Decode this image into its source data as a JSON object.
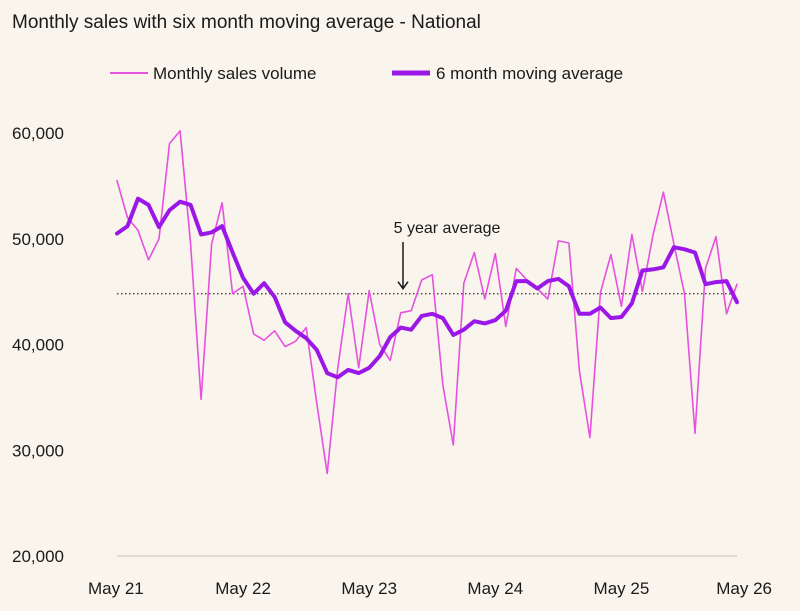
{
  "chart_data": {
    "type": "line",
    "title": "Monthly sales with six month moving average - National",
    "xlabel": "",
    "ylabel": "",
    "ylim": [
      20000,
      60000
    ],
    "yticks": [
      20000,
      30000,
      40000,
      50000,
      60000
    ],
    "ytick_labels": [
      "20,000",
      "30,000",
      "40,000",
      "50,000",
      "60,000"
    ],
    "xtick_labels": [
      "May 21",
      "May 22",
      "May 23",
      "May 24",
      "May 25",
      "May 26"
    ],
    "x_start": "May 21",
    "x_end": "May 26",
    "grid": false,
    "legend_position": "top",
    "reference_line": {
      "label": "5 year average",
      "value": 44800
    },
    "series": [
      {
        "name": "Monthly sales volume",
        "color": "#e552e0",
        "values": [
          55500,
          52000,
          50800,
          48000,
          50000,
          59000,
          60200,
          49500,
          34800,
          49500,
          53400,
          44800,
          45500,
          41000,
          40400,
          41300,
          39800,
          40300,
          41600,
          34500,
          27800,
          37700,
          44800,
          37800,
          45100,
          40000,
          38500,
          43000,
          43200,
          46100,
          46600,
          36200,
          30500,
          45800,
          48700,
          44300,
          48600,
          41700,
          47200,
          46100,
          45300,
          44300,
          49800,
          49600,
          37500,
          31200,
          44900,
          48500,
          43600,
          50400,
          45000,
          50300,
          54400,
          49500,
          44800,
          31600,
          47200,
          50200,
          42900,
          45700
        ]
      },
      {
        "name": "6 month moving average",
        "color": "#9a17e8",
        "values": [
          50500,
          51200,
          53800,
          53200,
          51100,
          52700,
          53500,
          53200,
          50400,
          50600,
          51200,
          48700,
          46300,
          44800,
          45800,
          44500,
          42100,
          41300,
          40600,
          39500,
          37300,
          36900,
          37600,
          37300,
          37800,
          38900,
          40700,
          41600,
          41400,
          42700,
          42900,
          42500,
          40900,
          41400,
          42200,
          42000,
          42300,
          43200,
          46000,
          46000,
          45300,
          46000,
          46200,
          45500,
          42900,
          42900,
          43500,
          42500,
          42600,
          43900,
          47000,
          47100,
          47300,
          49200,
          49000,
          48700,
          45700,
          45900,
          46000,
          44000
        ]
      }
    ]
  }
}
